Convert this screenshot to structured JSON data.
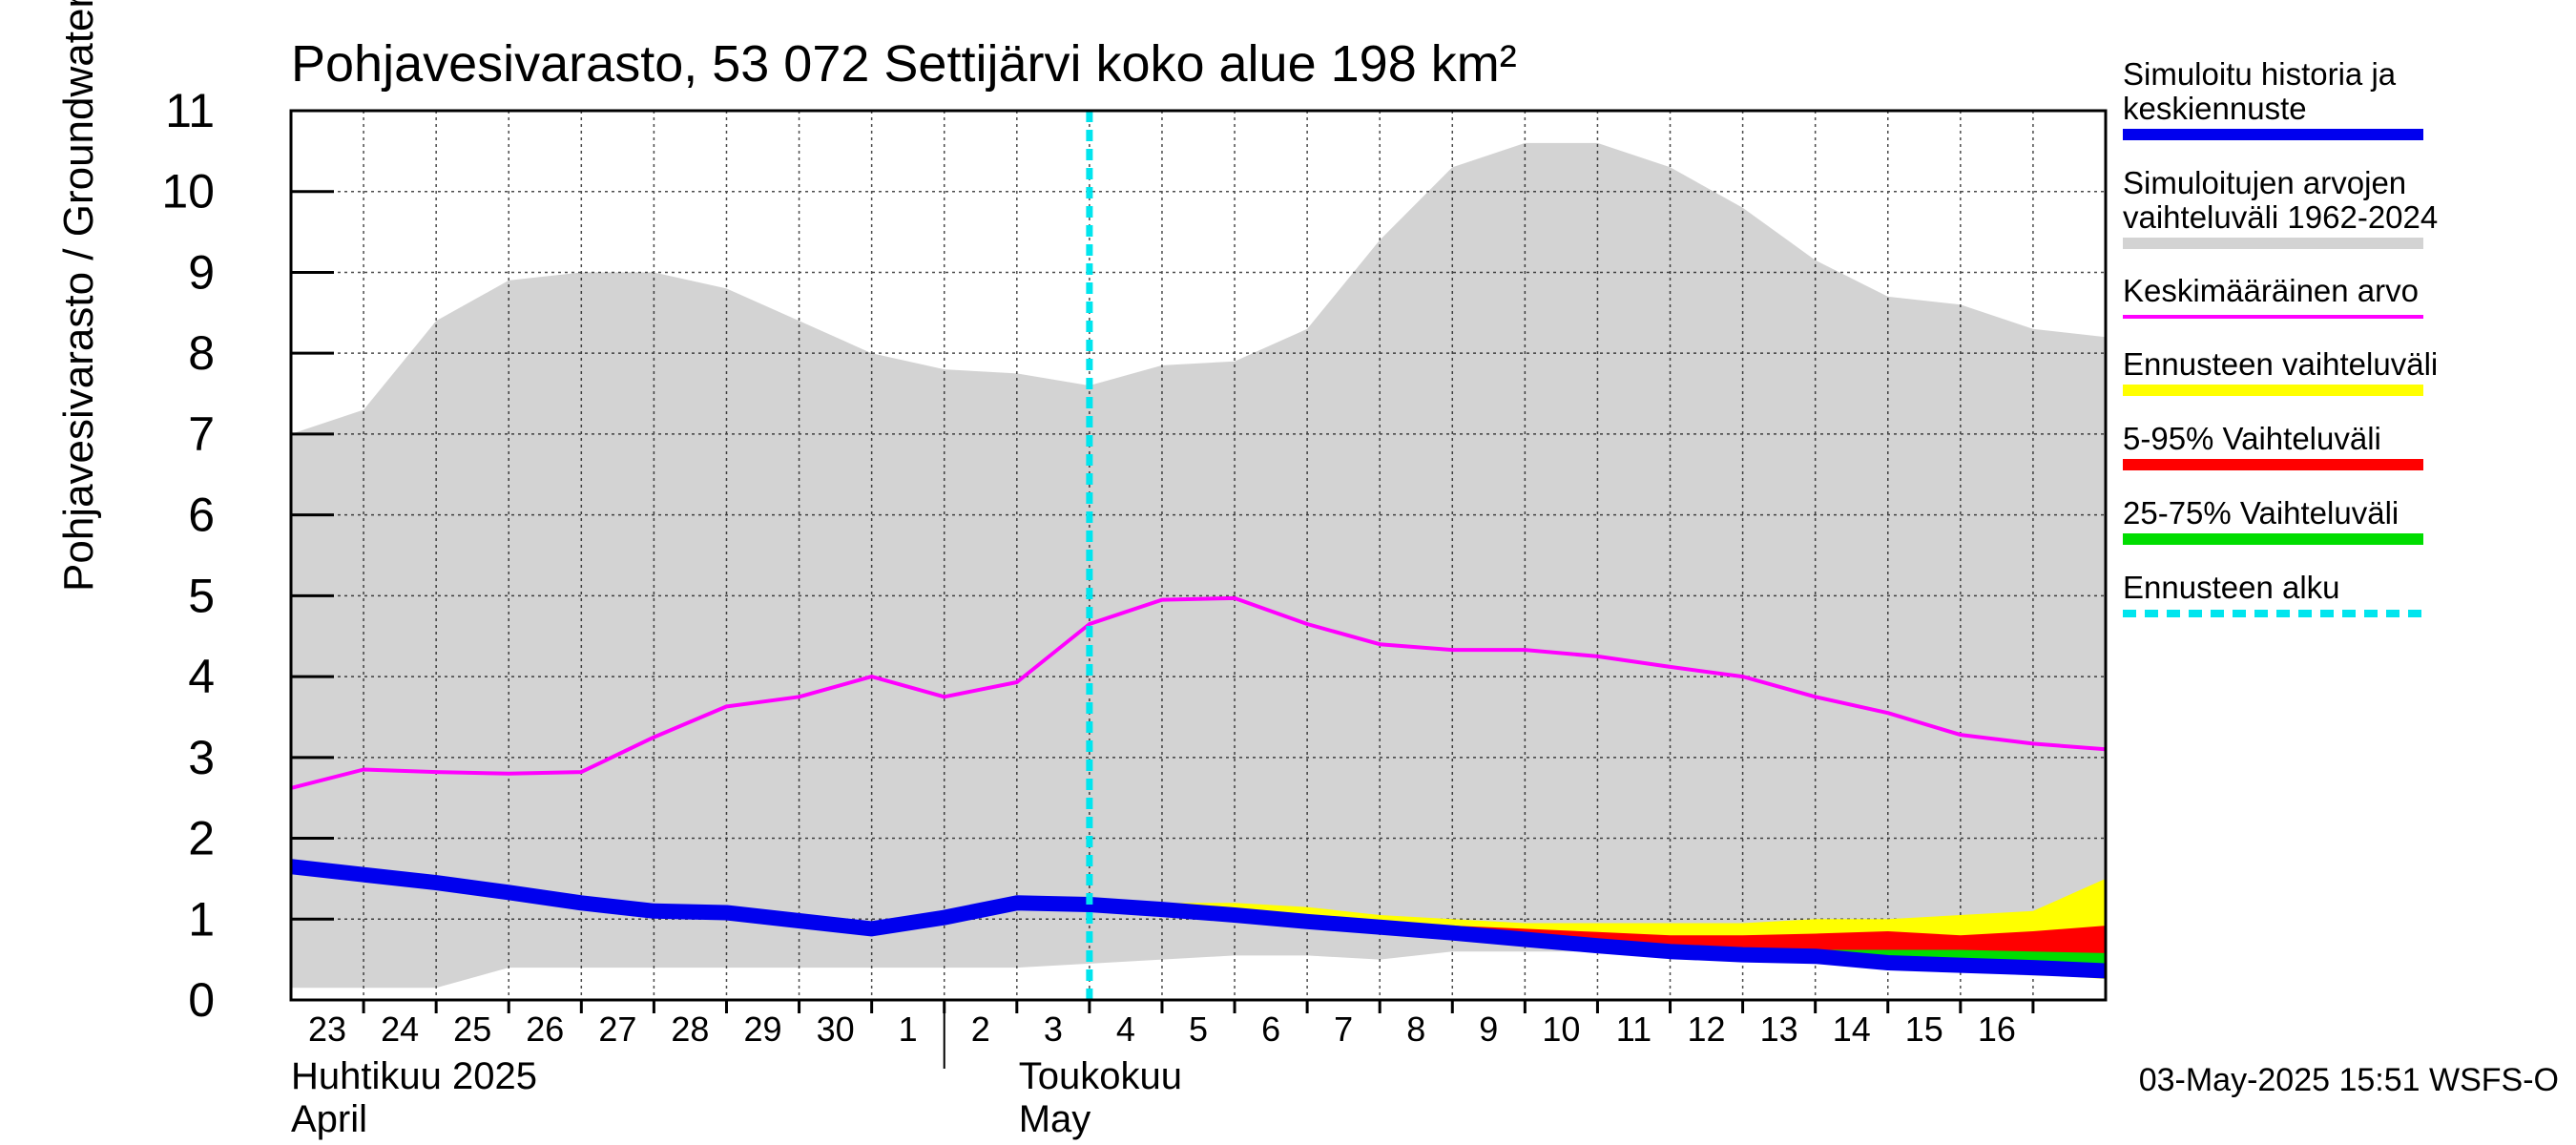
{
  "chart_data": {
    "type": "area",
    "title": "Pohjavesivarasto, 53 072 Settijärvi koko alue 198 km²",
    "ylabel": "Pohjavesivarasto / Groundwater storage   mm",
    "ylim": [
      0,
      11
    ],
    "yticks": [
      0,
      1,
      2,
      3,
      4,
      5,
      6,
      7,
      8,
      9,
      10,
      11
    ],
    "grid": true,
    "legend_position": "right",
    "x_start": "2025-04-22",
    "x_end": "2025-05-17",
    "xticks": [
      {
        "date": "2025-04-23",
        "label": "23"
      },
      {
        "date": "2025-04-24",
        "label": "24"
      },
      {
        "date": "2025-04-25",
        "label": "25"
      },
      {
        "date": "2025-04-26",
        "label": "26"
      },
      {
        "date": "2025-04-27",
        "label": "27"
      },
      {
        "date": "2025-04-28",
        "label": "28"
      },
      {
        "date": "2025-04-29",
        "label": "29"
      },
      {
        "date": "2025-04-30",
        "label": "30"
      },
      {
        "date": "2025-05-01",
        "label": "1"
      },
      {
        "date": "2025-05-02",
        "label": "2"
      },
      {
        "date": "2025-05-03",
        "label": "3"
      },
      {
        "date": "2025-05-04",
        "label": "4"
      },
      {
        "date": "2025-05-05",
        "label": "5"
      },
      {
        "date": "2025-05-06",
        "label": "6"
      },
      {
        "date": "2025-05-07",
        "label": "7"
      },
      {
        "date": "2025-05-08",
        "label": "8"
      },
      {
        "date": "2025-05-09",
        "label": "9"
      },
      {
        "date": "2025-05-10",
        "label": "10"
      },
      {
        "date": "2025-05-11",
        "label": "11"
      },
      {
        "date": "2025-05-12",
        "label": "12"
      },
      {
        "date": "2025-05-13",
        "label": "13"
      },
      {
        "date": "2025-05-14",
        "label": "14"
      },
      {
        "date": "2025-05-15",
        "label": "15"
      },
      {
        "date": "2025-05-16",
        "label": "16"
      }
    ],
    "month_labels": [
      {
        "date": "2025-04-22",
        "line1": "Huhtikuu  2025",
        "line2": "April"
      },
      {
        "date": "2025-05-01",
        "line1": "Toukokuu",
        "line2": "May"
      }
    ],
    "forecast_start": "2025-05-03",
    "dates": [
      "2025-04-22",
      "2025-04-23",
      "2025-04-24",
      "2025-04-25",
      "2025-04-26",
      "2025-04-27",
      "2025-04-28",
      "2025-04-29",
      "2025-04-30",
      "2025-05-01",
      "2025-05-02",
      "2025-05-03",
      "2025-05-04",
      "2025-05-05",
      "2025-05-06",
      "2025-05-07",
      "2025-05-08",
      "2025-05-09",
      "2025-05-10",
      "2025-05-11",
      "2025-05-12",
      "2025-05-13",
      "2025-05-14",
      "2025-05-15",
      "2025-05-16",
      "2025-05-17"
    ],
    "series": [
      {
        "name": "Simuloitujen arvojen vaihteluväli 1962-2024",
        "kind": "band",
        "color": "#d3d3d3",
        "upper": [
          7.0,
          7.3,
          8.4,
          8.9,
          9.0,
          9.0,
          8.8,
          8.4,
          8.0,
          7.8,
          7.75,
          7.6,
          7.85,
          7.9,
          8.3,
          9.4,
          10.3,
          10.6,
          10.6,
          10.3,
          9.8,
          9.15,
          8.7,
          8.6,
          8.3,
          8.2
        ],
        "lower": [
          0.15,
          0.15,
          0.15,
          0.4,
          0.4,
          0.4,
          0.4,
          0.4,
          0.4,
          0.4,
          0.4,
          0.45,
          0.5,
          0.55,
          0.55,
          0.5,
          0.6,
          0.6,
          0.6,
          0.55,
          0.5,
          0.45,
          0.4,
          0.35,
          0.3,
          0.3
        ]
      },
      {
        "name": "Ennusteen vaihteluväli",
        "kind": "band",
        "color": "#ffff00",
        "dates": [
          "2025-05-03",
          "2025-05-04",
          "2025-05-05",
          "2025-05-06",
          "2025-05-07",
          "2025-05-08",
          "2025-05-09",
          "2025-05-10",
          "2025-05-11",
          "2025-05-12",
          "2025-05-13",
          "2025-05-14",
          "2025-05-15",
          "2025-05-16",
          "2025-05-17"
        ],
        "upper": [
          1.2,
          1.2,
          1.2,
          1.15,
          1.05,
          1.0,
          0.95,
          0.95,
          0.95,
          0.95,
          1.0,
          1.0,
          1.05,
          1.1,
          1.5
        ],
        "lower": [
          1.2,
          1.15,
          1.08,
          1.0,
          0.92,
          0.85,
          0.78,
          0.7,
          0.63,
          0.55,
          0.5,
          0.44,
          0.38,
          0.32,
          0.26
        ]
      },
      {
        "name": "5-95% Vaihteluväli",
        "kind": "band",
        "color": "#ff0000",
        "dates": [
          "2025-05-03",
          "2025-05-04",
          "2025-05-05",
          "2025-05-06",
          "2025-05-07",
          "2025-05-08",
          "2025-05-09",
          "2025-05-10",
          "2025-05-11",
          "2025-05-12",
          "2025-05-13",
          "2025-05-14",
          "2025-05-15",
          "2025-05-16",
          "2025-05-17"
        ],
        "upper": [
          1.2,
          1.17,
          1.12,
          1.05,
          0.98,
          0.92,
          0.88,
          0.84,
          0.8,
          0.8,
          0.82,
          0.85,
          0.8,
          0.85,
          0.92
        ],
        "lower": [
          1.2,
          1.15,
          1.08,
          1.0,
          0.92,
          0.85,
          0.78,
          0.7,
          0.63,
          0.55,
          0.5,
          0.44,
          0.38,
          0.33,
          0.27
        ]
      },
      {
        "name": "25-75% Vaihteluväli",
        "kind": "band",
        "color": "#00dd00",
        "dates": [
          "2025-05-03",
          "2025-05-04",
          "2025-05-05",
          "2025-05-06",
          "2025-05-07",
          "2025-05-08",
          "2025-05-09",
          "2025-05-10",
          "2025-05-11",
          "2025-05-12",
          "2025-05-13",
          "2025-05-14",
          "2025-05-15",
          "2025-05-16",
          "2025-05-17"
        ],
        "upper": [
          1.2,
          1.16,
          1.1,
          1.03,
          0.96,
          0.89,
          0.82,
          0.75,
          0.69,
          0.64,
          0.62,
          0.62,
          0.62,
          0.6,
          0.58
        ],
        "lower": [
          1.2,
          1.15,
          1.09,
          1.01,
          0.94,
          0.87,
          0.8,
          0.72,
          0.65,
          0.58,
          0.52,
          0.47,
          0.43,
          0.4,
          0.37
        ]
      },
      {
        "name": "Keskimääräinen arvo",
        "kind": "line",
        "color": "#ff00ff",
        "values": [
          2.62,
          2.85,
          2.82,
          2.8,
          2.82,
          3.25,
          3.63,
          3.75,
          4.0,
          3.75,
          3.93,
          4.65,
          4.95,
          4.97,
          4.65,
          4.4,
          4.33,
          4.33,
          4.25,
          4.12,
          4.0,
          3.75,
          3.55,
          3.28,
          3.17,
          3.1
        ]
      },
      {
        "name": "Simuloitu historia ja keskiennuste",
        "kind": "line",
        "color": "#0000ee",
        "values": [
          1.65,
          1.55,
          1.45,
          1.33,
          1.2,
          1.1,
          1.08,
          0.98,
          0.88,
          1.02,
          1.2,
          1.18,
          1.12,
          1.05,
          0.97,
          0.9,
          0.83,
          0.75,
          0.67,
          0.6,
          0.56,
          0.54,
          0.46,
          0.43,
          0.4,
          0.36
        ]
      }
    ],
    "legend": [
      {
        "label": "Simuloitu historia ja keskiennuste",
        "color": "#0000ee",
        "style": "solid"
      },
      {
        "label": "Simuloitujen arvojen vaihteluväli 1962-2024",
        "color": "#d3d3d3",
        "style": "solid"
      },
      {
        "label": "Keskimääräinen arvo",
        "color": "#ff00ff",
        "style": "thin"
      },
      {
        "label": "Ennusteen vaihteluväli",
        "color": "#ffff00",
        "style": "solid"
      },
      {
        "label": "5-95% Vaihteluväli",
        "color": "#ff0000",
        "style": "solid"
      },
      {
        "label": "25-75% Vaihteluväli",
        "color": "#00dd00",
        "style": "solid"
      },
      {
        "label": "Ennusteen alku",
        "color": "#00e5ee",
        "style": "dashed"
      }
    ],
    "footer": "03-May-2025 15:51 WSFS-O"
  }
}
